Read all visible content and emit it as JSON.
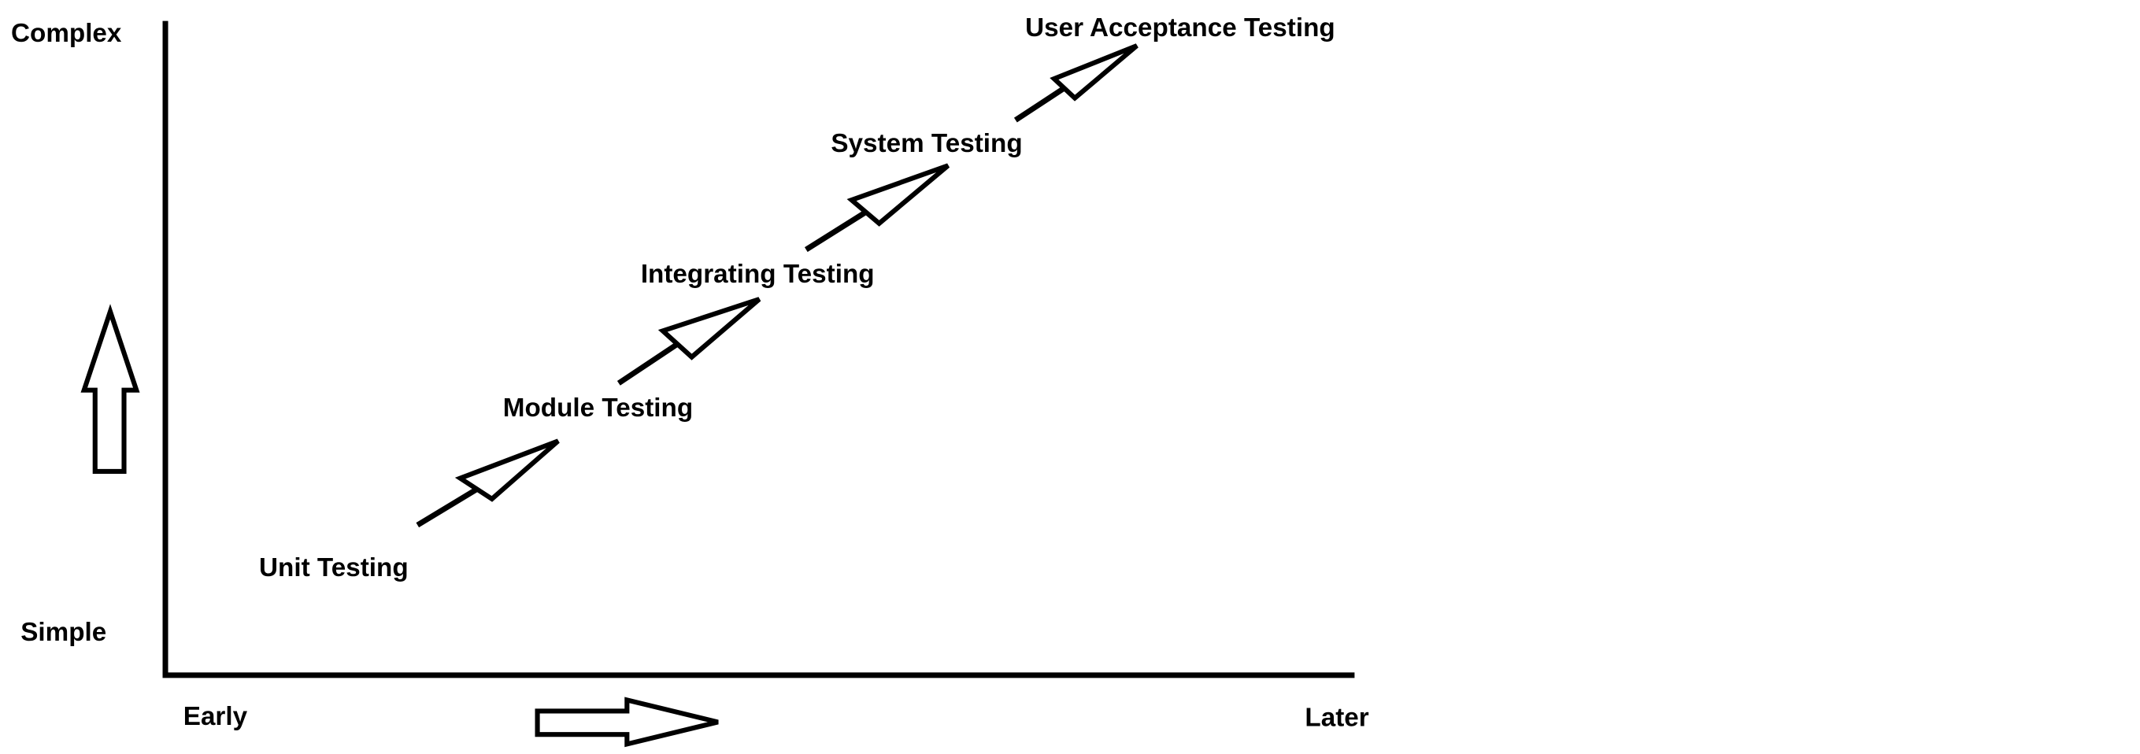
{
  "axes": {
    "y_top": "Complex",
    "y_bottom": "Simple",
    "x_left": "Early",
    "x_right": "Later"
  },
  "stages": [
    {
      "label": "Unit Testing"
    },
    {
      "label": "Module Testing"
    },
    {
      "label": "Integrating Testing"
    },
    {
      "label": "System Testing"
    },
    {
      "label": "User Acceptance Testing"
    }
  ]
}
